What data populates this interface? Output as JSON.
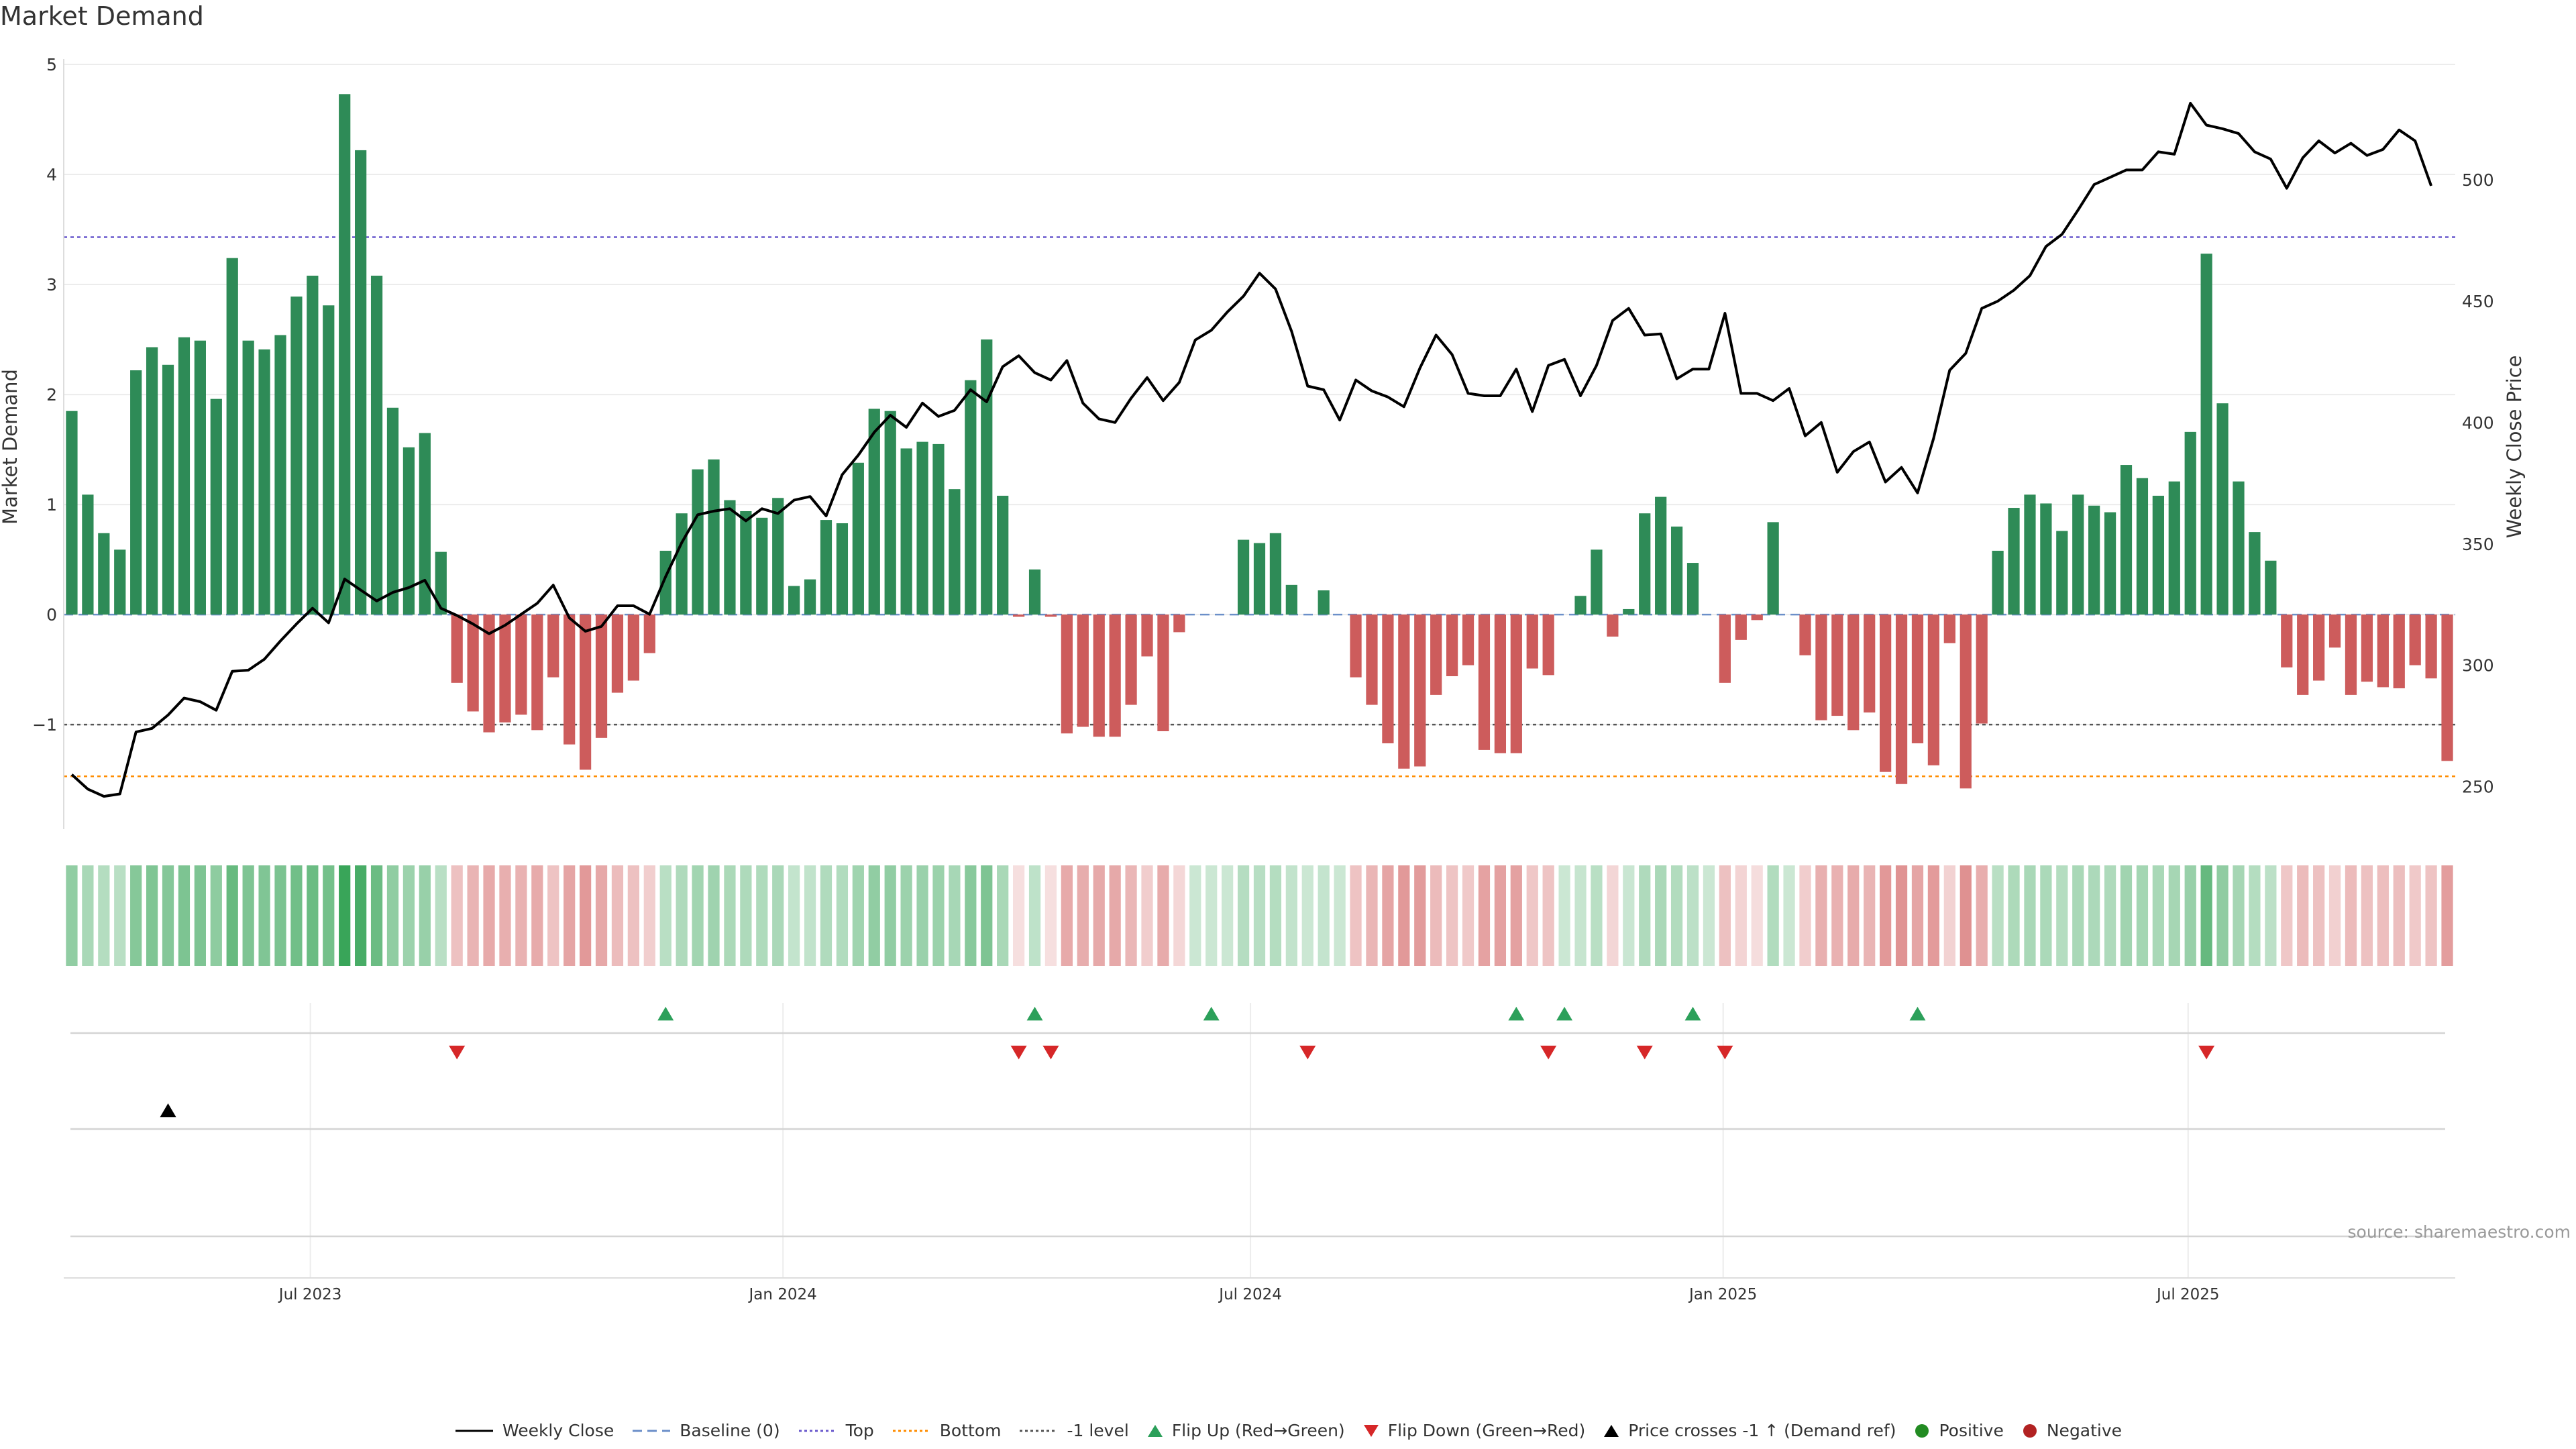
{
  "title": "Market Demand",
  "source": "source: sharemaestro.com",
  "colors": {
    "positive": "#2e8b57",
    "negative": "#cd5c5c",
    "price_line": "#000000",
    "top_line": "#6a5acd",
    "bottom_line": "#ff8c00",
    "minus1_line": "#555555",
    "flip_up": "#2ca05a",
    "flip_down": "#d62728",
    "price_cross": "#000000",
    "positive_dot": "#228b22",
    "negative_dot": "#b22222"
  },
  "legend": [
    {
      "label": "Weekly Close",
      "kind": "line",
      "color": "#000000",
      "dash": "none"
    },
    {
      "label": "Baseline (0)",
      "kind": "line",
      "color": "#6b8fc9",
      "dash": "14,8"
    },
    {
      "label": "Top",
      "kind": "line",
      "color": "#6a5acd",
      "dash": "4,4"
    },
    {
      "label": "Bottom",
      "kind": "line",
      "color": "#ff8c00",
      "dash": "4,4"
    },
    {
      "label": "-1 level",
      "kind": "line",
      "color": "#555555",
      "dash": "4,4"
    },
    {
      "label": "Flip Up (Red→Green)",
      "kind": "tri-up",
      "color": "#2ca05a"
    },
    {
      "label": "Flip Down (Green→Red)",
      "kind": "tri-down",
      "color": "#d62728"
    },
    {
      "label": "Price crosses -1 ↑ (Demand ref)",
      "kind": "tri-up",
      "color": "#000000"
    },
    {
      "label": "Positive",
      "kind": "dot",
      "color": "#228b22"
    },
    {
      "label": "Negative",
      "kind": "dot",
      "color": "#b22222"
    }
  ],
  "chart_data": {
    "type": "bar",
    "start_date": "2023-03-27",
    "x_end_date": "2025-10-13",
    "frequency": "weekly",
    "x_tick_labels": [
      "Jul 2023",
      "Jan 2024",
      "Jul 2024",
      "Jan 2025",
      "Jul 2025"
    ],
    "x_tick_dates": [
      "2023-07-01",
      "2024-01-01",
      "2024-07-01",
      "2025-01-01",
      "2025-07-01"
    ],
    "ylabel": "Market Demand",
    "ylim": [
      -1.95,
      5.0
    ],
    "y_ticks": [
      -1,
      0,
      1,
      2,
      3,
      4,
      5
    ],
    "y_tick_labels": [
      "−1",
      "0",
      "1",
      "2",
      "3",
      "4",
      "5"
    ],
    "y2label": "Weekly Close Price",
    "y2lim": [
      232.5,
      547.5
    ],
    "y2_ticks": [
      250,
      300,
      350,
      400,
      450,
      500
    ],
    "reference_lines": {
      "top": 3.43,
      "bottom": -1.47,
      "minus1": -1.0,
      "baseline": 0
    },
    "series": [
      {
        "name": "Market Demand",
        "values": [
          1.85,
          1.09,
          0.74,
          0.59,
          2.22,
          2.43,
          2.27,
          2.52,
          2.49,
          1.96,
          3.24,
          2.49,
          2.41,
          2.54,
          2.89,
          3.08,
          2.81,
          4.73,
          4.22,
          3.08,
          1.88,
          1.52,
          1.65,
          0.57,
          -0.62,
          -0.88,
          -1.07,
          -0.98,
          -0.91,
          -1.05,
          -0.57,
          -1.18,
          -1.41,
          -1.12,
          -0.71,
          -0.6,
          -0.35,
          0.58,
          0.92,
          1.32,
          1.41,
          1.04,
          0.94,
          0.88,
          1.06,
          0.26,
          0.32,
          0.86,
          0.83,
          1.38,
          1.87,
          1.85,
          1.51,
          1.57,
          1.55,
          1.14,
          2.13,
          2.5,
          1.08,
          -0.02,
          0.41,
          -0.02,
          -1.08,
          -1.02,
          -1.11,
          -1.11,
          -0.82,
          -0.38,
          -1.06,
          -0.16,
          0,
          0,
          0,
          0.68,
          0.65,
          0.74,
          0.27,
          0,
          0.22,
          0,
          -0.57,
          -0.82,
          -1.17,
          -1.4,
          -1.38,
          -0.73,
          -0.56,
          -0.46,
          -1.23,
          -1.26,
          -1.26,
          -0.49,
          -0.55,
          0,
          0.17,
          0.59,
          -0.2,
          0.05,
          0.92,
          1.07,
          0.8,
          0.47,
          0,
          -0.62,
          -0.23,
          -0.05,
          0.84,
          0,
          -0.37,
          -0.96,
          -0.92,
          -1.05,
          -0.89,
          -1.43,
          -1.54,
          -1.17,
          -1.37,
          -0.26,
          -1.58,
          -0.99,
          0.58,
          0.97,
          1.09,
          1.01,
          0.76,
          1.09,
          0.99,
          0.93,
          1.36,
          1.24,
          1.08,
          1.21,
          1.66,
          3.28,
          1.92,
          1.21,
          0.75,
          0.49,
          -0.48,
          -0.73,
          -0.6,
          -0.3,
          -0.73,
          -0.61,
          -0.66,
          -0.67,
          -0.46,
          -0.58,
          -1.33
        ]
      },
      {
        "name": "Weekly Close",
        "values": [
          255.0,
          249.0,
          246.0,
          247.0,
          272.5,
          274.0,
          279.5,
          286.5,
          285.0,
          281.5,
          297.5,
          298.0,
          302.5,
          310.0,
          317.0,
          323.5,
          317.5,
          335.5,
          331.0,
          326.5,
          330.0,
          332.0,
          335.0,
          323.5,
          320.5,
          317.0,
          313.0,
          316.5,
          321.0,
          325.5,
          333.0,
          319.5,
          314.0,
          316.0,
          324.5,
          324.5,
          321.0,
          336.5,
          350.5,
          362.0,
          363.5,
          364.5,
          359.5,
          364.5,
          362.5,
          368.0,
          369.5,
          361.5,
          378.5,
          386.5,
          396.0,
          403.0,
          398.0,
          408.0,
          402.5,
          405.0,
          413.5,
          408.5,
          423.0,
          427.5,
          420.5,
          417.5,
          425.5,
          408.0,
          401.5,
          400.0,
          410.0,
          418.5,
          409.0,
          416.5,
          434.0,
          438.0,
          445.5,
          452.0,
          461.5,
          455.0,
          437.5,
          415.0,
          413.5,
          401.0,
          417.5,
          413.0,
          410.5,
          406.5,
          422.5,
          436.0,
          428.0,
          412.0,
          411.0,
          411.0,
          422.0,
          404.5,
          423.5,
          426.0,
          411.0,
          423.5,
          442.0,
          447.0,
          436.0,
          436.5,
          418.0,
          422.0,
          422.0,
          445.0,
          412.0,
          412.0,
          409.0,
          414.0,
          394.5,
          400.0,
          379.5,
          388.0,
          392.0,
          375.5,
          381.5,
          371.0,
          393.5,
          421.5,
          428.5,
          447.0,
          450.0,
          454.5,
          460.5,
          472.5,
          477.5,
          487.5,
          498.0,
          501.0,
          504.0,
          504.0,
          511.5,
          510.5,
          531.5,
          522.5,
          521.0,
          519.0,
          511.5,
          508.5,
          496.5,
          509.0,
          516.0,
          511.0,
          515.0,
          510.0,
          512.5,
          520.5,
          516.0,
          497.5
        ]
      }
    ],
    "flip_up_indices": [
      37,
      60,
      71,
      90,
      93,
      101,
      115
    ],
    "flip_down_indices": [
      24,
      59,
      61,
      77,
      92,
      98,
      103,
      133
    ],
    "price_cross_indices": [
      6
    ]
  }
}
